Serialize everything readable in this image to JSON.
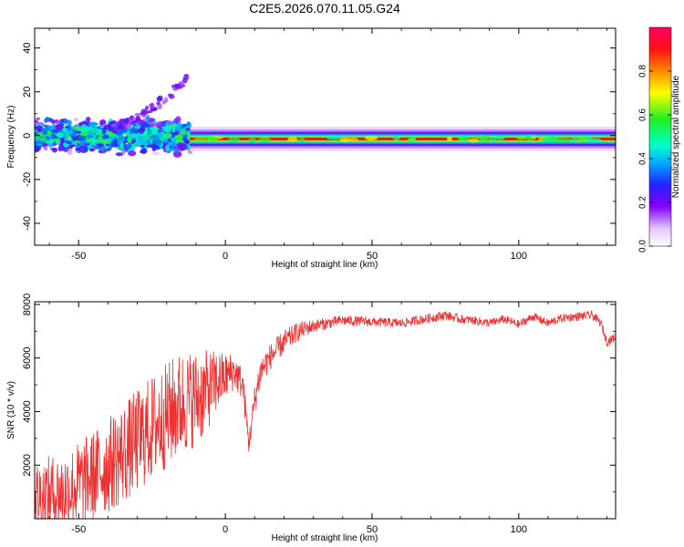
{
  "title": "C2E5.2026.070.11.05.G24",
  "chart_data": [
    {
      "type": "heatmap",
      "xlabel": "Height of straight line (km)",
      "ylabel": "Frequency (Hz)",
      "xlim": [
        -65,
        133
      ],
      "ylim": [
        -50,
        49
      ],
      "xticks": [
        -50,
        0,
        50,
        100
      ],
      "yticks": [
        -40,
        -20,
        0,
        20,
        40
      ],
      "colorbar": {
        "label": "Normalized spectral amplitude",
        "range": [
          0.0,
          1.0
        ],
        "ticks": [
          "0.0",
          "0.2",
          "0.4",
          "0.6",
          "0.8"
        ]
      },
      "features": [
        {
          "desc": "noisy scattered band",
          "x_range": [
            -65,
            -12
          ],
          "freq_center": 0,
          "freq_spread": 8
        },
        {
          "desc": "rising streak",
          "x_range": [
            -40,
            -13
          ],
          "freq_range": [
            4,
            26
          ]
        },
        {
          "desc": "strong carrier line",
          "x_range": [
            -12,
            133
          ],
          "freq_center": -1.5,
          "amplitude": 0.95
        }
      ]
    },
    {
      "type": "line",
      "xlabel": "Height of straight line (km)",
      "ylabel": "SNR (10 * v/v)",
      "xlim": [
        -65,
        133
      ],
      "ylim": [
        0,
        8100
      ],
      "xticks": [
        -50,
        0,
        50,
        100
      ],
      "yticks": [
        2000,
        4000,
        6000,
        8000
      ],
      "series": [
        {
          "name": "SNR",
          "color": "#ee3030",
          "x": [
            -65,
            -55,
            -45,
            -35,
            -25,
            -15,
            -8,
            -3,
            0,
            3,
            6,
            8,
            10,
            12,
            15,
            20,
            25,
            30,
            35,
            40,
            50,
            60,
            70,
            75,
            80,
            85,
            90,
            95,
            100,
            105,
            110,
            115,
            120,
            125,
            128,
            130,
            133
          ],
          "y": [
            800,
            1000,
            1600,
            2400,
            3400,
            4300,
            4600,
            5100,
            5300,
            5500,
            5000,
            2800,
            4400,
            5500,
            6000,
            6600,
            7000,
            7200,
            7300,
            7400,
            7350,
            7300,
            7500,
            7600,
            7450,
            7400,
            7300,
            7450,
            7250,
            7550,
            7300,
            7500,
            7550,
            7600,
            7300,
            6600,
            6800
          ],
          "noise": [
            1400,
            1500,
            1700,
            1900,
            2000,
            2000,
            1700,
            1200,
            900,
            700,
            600,
            400,
            600,
            600,
            500,
            450,
            350,
            250,
            220,
            200,
            180,
            170,
            180,
            180,
            160,
            160,
            160,
            160,
            160,
            160,
            160,
            160,
            160,
            160,
            160,
            160,
            160
          ]
        }
      ]
    }
  ]
}
